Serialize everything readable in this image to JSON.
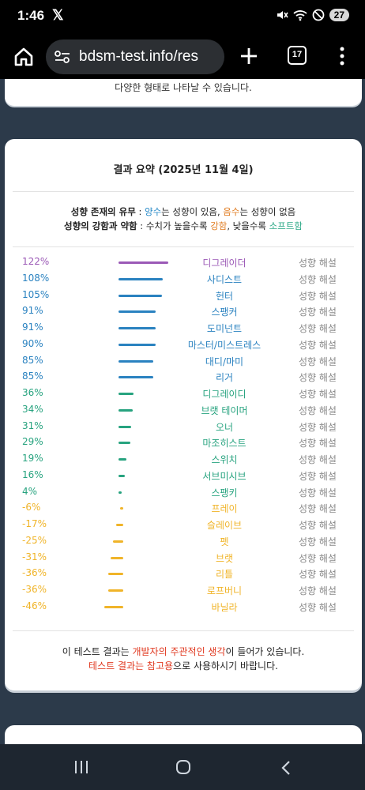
{
  "status": {
    "time": "1:46",
    "x_logo": "𝕏",
    "battery": "27",
    "icons": [
      "mute-icon",
      "wifi-icon",
      "dnd-icon",
      "battery-icon"
    ]
  },
  "browser": {
    "url": "bdsm-test.info/res",
    "tab_count": "17",
    "icons": [
      "home-icon",
      "site-settings-icon",
      "new-tab-icon",
      "tab-switcher-icon",
      "more-menu-icon"
    ]
  },
  "prev_card": {
    "text": "다양한 형태로 나타날 수 있습니다."
  },
  "summary": {
    "title": "결과 요약 (2025년 11월 4일)",
    "legend1": {
      "label": "성향 존재의 유무",
      "sep": " : ",
      "pos": "양수",
      "mid": "는 성향이 있음, ",
      "neg": "음수",
      "end": "는 성향이 없음"
    },
    "legend2": {
      "label": "성향의 강함과 약함",
      "sep": " : 수치가 높을수록 ",
      "strong": "강함",
      "mid": ", 낮을수록 ",
      "soft": "소프트함"
    },
    "explain_label": "성향 해설",
    "colors": {
      "purple": "#9b59b6",
      "blue": "#2a82c0",
      "teal": "#27a37f",
      "orange": "#f0b429"
    },
    "results": [
      {
        "pct": "122%",
        "value": 122,
        "name": "디그레이더",
        "color": "#9b59b6"
      },
      {
        "pct": "108%",
        "value": 108,
        "name": "사디스트",
        "color": "#2a82c0"
      },
      {
        "pct": "105%",
        "value": 105,
        "name": "헌터",
        "color": "#2a82c0"
      },
      {
        "pct": "91%",
        "value": 91,
        "name": "스팽커",
        "color": "#2a82c0"
      },
      {
        "pct": "91%",
        "value": 91,
        "name": "도미넌트",
        "color": "#2a82c0"
      },
      {
        "pct": "90%",
        "value": 90,
        "name": "마스터/미스트레스",
        "color": "#2a82c0"
      },
      {
        "pct": "85%",
        "value": 85,
        "name": "대디/마미",
        "color": "#2a82c0"
      },
      {
        "pct": "85%",
        "value": 85,
        "name": "리거",
        "color": "#2a82c0"
      },
      {
        "pct": "36%",
        "value": 36,
        "name": "디그레이디",
        "color": "#27a37f"
      },
      {
        "pct": "34%",
        "value": 34,
        "name": "브랫 테이머",
        "color": "#27a37f"
      },
      {
        "pct": "31%",
        "value": 31,
        "name": "오너",
        "color": "#27a37f"
      },
      {
        "pct": "29%",
        "value": 29,
        "name": "마조히스트",
        "color": "#27a37f"
      },
      {
        "pct": "19%",
        "value": 19,
        "name": "스위치",
        "color": "#27a37f"
      },
      {
        "pct": "16%",
        "value": 16,
        "name": "서브미시브",
        "color": "#27a37f"
      },
      {
        "pct": "4%",
        "value": 4,
        "name": "스팽키",
        "color": "#27a37f"
      },
      {
        "pct": "-6%",
        "value": -6,
        "name": "프레이",
        "color": "#f0b429"
      },
      {
        "pct": "-17%",
        "value": -17,
        "name": "슬레이브",
        "color": "#f0b429"
      },
      {
        "pct": "-25%",
        "value": -25,
        "name": "펫",
        "color": "#f0b429"
      },
      {
        "pct": "-31%",
        "value": -31,
        "name": "브랫",
        "color": "#f0b429"
      },
      {
        "pct": "-36%",
        "value": -36,
        "name": "리틀",
        "color": "#f0b429"
      },
      {
        "pct": "-36%",
        "value": -36,
        "name": "로프버니",
        "color": "#f0b429"
      },
      {
        "pct": "-46%",
        "value": -46,
        "name": "바닐라",
        "color": "#f0b429"
      }
    ],
    "note1": {
      "a": "이 테스트 결과는 ",
      "b": "개발자의 주관적인 생각",
      "c": "이 들어가 있습니다."
    },
    "note2": {
      "a": "테스트 결과는 참고용",
      "b": "으로 사용하시기 바랍니다."
    }
  },
  "nav": {
    "icons": [
      "recents-icon",
      "home-circle-icon",
      "back-icon"
    ]
  }
}
